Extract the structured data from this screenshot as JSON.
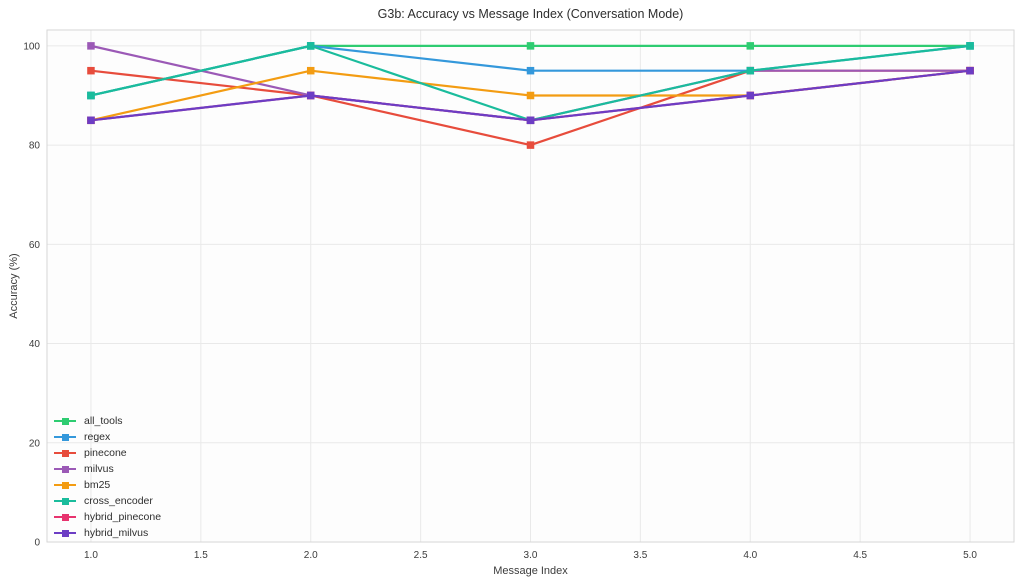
{
  "chart_data": {
    "type": "line",
    "title": "G3b: Accuracy vs Message Index (Conversation Mode)",
    "xlabel": "Message Index",
    "ylabel": "Accuracy (%)",
    "x": [
      1,
      2,
      3,
      4,
      5
    ],
    "xlim": [
      0.8,
      5.2
    ],
    "ylim": [
      0,
      103.2
    ],
    "xticks": [
      1.0,
      1.5,
      2.0,
      2.5,
      3.0,
      3.5,
      4.0,
      4.5,
      5.0
    ],
    "xtick_labels": [
      "1.0",
      "1.5",
      "2.0",
      "2.5",
      "3.0",
      "3.5",
      "4.0",
      "4.5",
      "5.0"
    ],
    "yticks": [
      0,
      20,
      40,
      60,
      80,
      100
    ],
    "ytick_labels": [
      "0",
      "20",
      "40",
      "60",
      "80",
      "100"
    ],
    "grid": true,
    "legend_position": "lower-left",
    "series": [
      {
        "name": "all_tools",
        "color": "#2ecc71",
        "values": [
          90,
          100,
          100,
          100,
          100
        ]
      },
      {
        "name": "regex",
        "color": "#3498db",
        "values": [
          90,
          100,
          95,
          95,
          100
        ]
      },
      {
        "name": "pinecone",
        "color": "#e74c3c",
        "values": [
          95,
          90,
          80,
          95,
          95
        ]
      },
      {
        "name": "milvus",
        "color": "#9b59b6",
        "values": [
          100,
          90,
          85,
          95,
          95
        ]
      },
      {
        "name": "bm25",
        "color": "#f39c12",
        "values": [
          85,
          95,
          90,
          90,
          95
        ]
      },
      {
        "name": "cross_encoder",
        "color": "#1abc9c",
        "values": [
          90,
          100,
          85,
          95,
          100
        ]
      },
      {
        "name": "hybrid_pinecone",
        "color": "#e7336e",
        "values": [
          85,
          90,
          85,
          90,
          95
        ]
      },
      {
        "name": "hybrid_milvus",
        "color": "#6c3dc4",
        "values": [
          85,
          90,
          85,
          90,
          95
        ]
      }
    ],
    "colors": {
      "grid": "#e9e9e9",
      "plot_border": "#d6d6d6",
      "plot_background": "#fdfdfd",
      "tick_text": "#3c3c3c",
      "title_text": "#2e2e2e"
    }
  }
}
